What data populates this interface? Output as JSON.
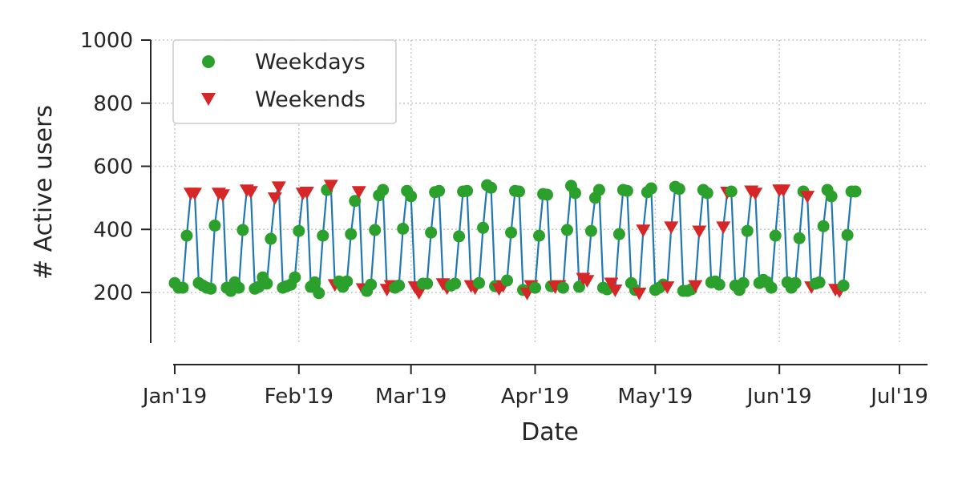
{
  "chart_data": {
    "type": "line",
    "title": "",
    "xlabel": "Date",
    "ylabel": "# Active users",
    "x_range": [
      "2018-12-26",
      "2019-07-08"
    ],
    "ylim": [
      40,
      1000
    ],
    "y_ticks": [
      200,
      400,
      600,
      800,
      1000
    ],
    "x_ticks": [
      {
        "date": "2019-01-01",
        "label": "Jan'19"
      },
      {
        "date": "2019-02-01",
        "label": "Feb'19"
      },
      {
        "date": "2019-03-01",
        "label": "Mar'19"
      },
      {
        "date": "2019-04-01",
        "label": "Apr'19"
      },
      {
        "date": "2019-05-01",
        "label": "May'19"
      },
      {
        "date": "2019-06-01",
        "label": "Jun'19"
      },
      {
        "date": "2019-07-01",
        "label": "Jul'19"
      }
    ],
    "grid": true,
    "legend_position": "top-left",
    "start_date": "2019-01-01",
    "values": [
      230,
      215,
      215,
      380,
      515,
      515,
      230,
      222,
      215,
      212,
      412,
      515,
      510,
      215,
      205,
      232,
      215,
      398,
      525,
      520,
      212,
      218,
      248,
      228,
      370,
      500,
      535,
      215,
      220,
      225,
      248,
      395,
      515,
      518,
      218,
      232,
      198,
      380,
      525,
      540,
      225,
      235,
      218,
      235,
      385,
      490,
      520,
      212,
      205,
      225,
      398,
      508,
      525,
      210,
      222,
      215,
      222,
      402,
      522,
      505,
      218,
      200,
      228,
      228,
      390,
      518,
      522,
      228,
      215,
      222,
      228,
      378,
      520,
      522,
      222,
      215,
      230,
      405,
      540,
      532,
      220,
      212,
      222,
      238,
      390,
      522,
      520,
      208,
      198,
      222,
      215,
      380,
      512,
      510,
      220,
      218,
      222,
      215,
      398,
      538,
      515,
      218,
      245,
      238,
      395,
      500,
      525,
      215,
      210,
      230,
      208,
      385,
      525,
      522,
      230,
      208,
      198,
      398,
      518,
      530,
      208,
      215,
      225,
      218,
      408,
      535,
      528,
      205,
      205,
      210,
      222,
      395,
      525,
      515,
      232,
      235,
      225,
      408,
      518,
      520,
      222,
      208,
      230,
      395,
      522,
      515,
      230,
      240,
      232,
      215,
      380,
      525,
      525,
      232,
      215,
      230,
      372,
      520,
      505,
      218,
      228,
      232,
      410,
      525,
      505,
      210,
      205,
      222,
      382,
      520,
      520
    ],
    "series": [
      {
        "name": "Weekdays",
        "color": "#2ca02c",
        "marker": "circle"
      },
      {
        "name": "Weekends",
        "color": "#d62728",
        "marker": "triangle-down"
      }
    ],
    "line_color": "#1f77b4"
  }
}
